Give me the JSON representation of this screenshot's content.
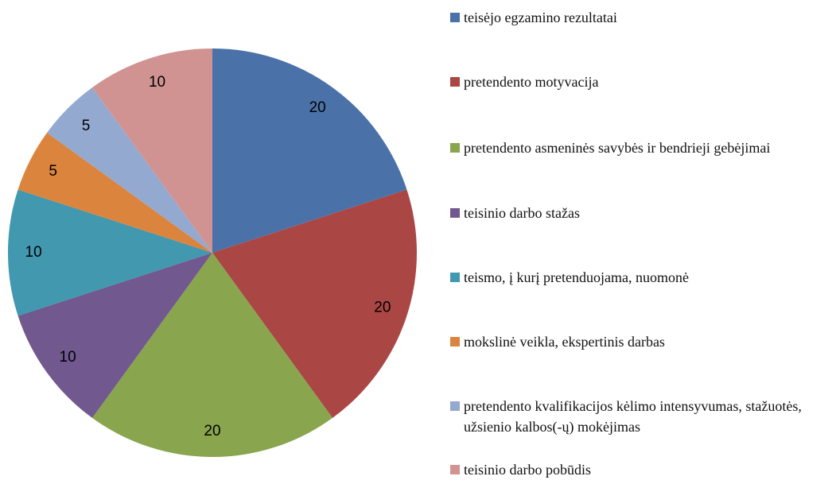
{
  "chart_data": {
    "type": "pie",
    "categories": [
      "teisėjo egzamino rezultatai",
      "pretendento motyvacija",
      "pretendento asmeninės savybės ir bendrieji gebėjimai",
      "teisinio darbo stažas",
      "teismo, į kurį pretenduojama, nuomonė",
      "mokslinė veikla, ekspertinis darbas",
      "pretendento kvalifikacijos kėlimo intensyvumas, stažuotės, užsienio kalbos(-ų) mokėjimas",
      "teisinio darbo pobūdis"
    ],
    "values": [
      20,
      20,
      20,
      10,
      10,
      5,
      5,
      10
    ],
    "colors": [
      "#4a72a8",
      "#aa4644",
      "#89a54e",
      "#71588f",
      "#4198af",
      "#db843d",
      "#93a9cf",
      "#d19392"
    ],
    "legend": "right"
  }
}
